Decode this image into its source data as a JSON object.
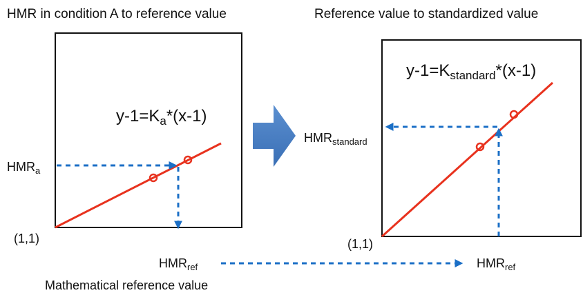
{
  "titles": {
    "left": "HMR in condition A to reference value",
    "right": "Reference value to standardized value"
  },
  "left_panel": {
    "equation": {
      "main": "y-1=K",
      "sub": "a",
      "rest": "*(x-1)"
    },
    "y_label": {
      "main": "HMR",
      "sub": "a"
    },
    "origin": "(1,1)"
  },
  "right_panel": {
    "equation": {
      "main": "y-1=K",
      "sub": "standard",
      "rest": "*(x-1)"
    },
    "y_label": {
      "main": "HMR",
      "sub": "standard"
    },
    "origin": "(1,1)"
  },
  "bottom": {
    "from": {
      "main": "HMR",
      "sub": "ref"
    },
    "to": {
      "main": "HMR",
      "sub": "ref"
    },
    "caption": "Mathematical reference value"
  }
}
